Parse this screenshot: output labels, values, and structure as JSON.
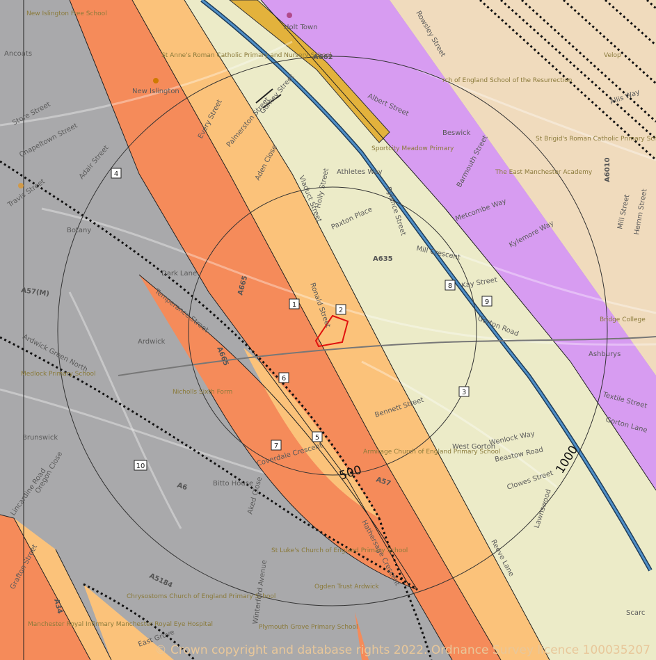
{
  "copyright": "© Crown copyright and database rights 2022. Ordnance Survey licence 100035207",
  "distance_labels": [
    "500",
    "1000"
  ],
  "markers": [
    "1",
    "2",
    "3",
    "4",
    "5",
    "6",
    "7",
    "8",
    "9",
    "10"
  ],
  "places": {
    "new_islington_free_school": "New Islington Free School",
    "holt_town": "Holt Town",
    "ancoats": "Ancoats",
    "st_annes": "St Anne's Roman Catholic Primary and Nursery School",
    "new_islington": "New Islington",
    "church_school": "rch of England School of the Resurrection",
    "beswick": "Beswick",
    "velop": "Velop",
    "st_brigids": "St Brigid's Roman Catholic Primary School",
    "east_manchester_academy": "The East Manchester Academy",
    "medlock_primary": "Medlock Primary School",
    "nicholls_sixth_form": "Nicholls Sixth Form",
    "brunswick": "Brunswick",
    "ardwick": "Ardwick",
    "west_gorton": "West Gorton",
    "armitage": "Armitage Church of England Primary School",
    "ashburys": "Ashburys",
    "bridge_college": "Bridge College",
    "st_lukes": "St Luke's Church of England Primary School",
    "ogden_trust": "Ogden Trust Ardwick",
    "chrysostoms": "Chrysostoms Church of England Primary School",
    "plymouth_grove": "Plymouth Grove Primary School",
    "mri": "Manchester Royal Infirmary Manchester Royal Eye Hospital",
    "sports_city": "Sportcity Meadow Primary"
  },
  "streets": {
    "store_street": "Store Street",
    "chapeltown_street": "Chapeltown Street",
    "adair_street": "Adair Street",
    "travis_street": "Travis Street",
    "every_street": "Every Street",
    "palmerston_street": "Palmerston Street",
    "gurney_street": "Gurney Street",
    "a662": "A662",
    "albert_street": "Albert Street",
    "rowsley_street": "Rowsley Street",
    "allis_way": "Allis Way",
    "aden_close": "Aden Close",
    "viaduct_street": "Viaduct Street",
    "athletes_way": "Athletes Way",
    "holly_street": "Holly Street",
    "rylance_street": "Rylance Street",
    "barmouth_street": "Barmouth Street",
    "metcombe_way": "Metcombe Way",
    "kylemore_way": "Kylemore Way",
    "mill_street": "Mill Street",
    "hemm_street": "Hemm Street",
    "a6010": "A6010",
    "paxton_place": "Paxton Place",
    "mill_crescent": "Mill Crescent",
    "a635": "A635",
    "dark_lane": "Dark Lane",
    "a57m": "A57(M)",
    "a665": "A665",
    "ronald_street": "Ronald Street",
    "kay_street": "Kay Street",
    "gorton_road": "Gorton Road",
    "temperance_street": "Temperance Street",
    "ardwick_green_north": "Ardwick Green North",
    "a665b": "A665",
    "bennett_street": "Bennett Street",
    "wenlock_way": "Wenlock Way",
    "beastow_road": "Beastow Road",
    "textile_street": "Textile Street",
    "gorton_lane": "Gorton Lane",
    "clowes_street": "Clowes Street",
    "lawnswood": "Lawnswood",
    "coverdale_crescent": "Coverdale Crescent",
    "a57": "A57",
    "oregon_close": "Oregon Close",
    "lincardine_road": "Lincardine Road",
    "a6": "A6",
    "bitto_house": "Bitto House",
    "aked_close": "Aked Close",
    "hathersage_crescent": "Hathersage Crescent",
    "grafton_street": "Grafton Street",
    "a34": "A34",
    "a5184": "A5184",
    "winterford_avenue": "Winterford Avenue",
    "east_grove": "East Grove",
    "reeve_lane": "Reeve Lane",
    "scarc": "Scarc",
    "botany": "Botany"
  },
  "colors": {
    "grey_band": "#a9a9ab",
    "orange_band": "#f58b5a",
    "light_orange_band": "#fbc27a",
    "cream_band": "#ecebc8",
    "purple_band": "#d79cf1",
    "beige_band": "#f0dbbd",
    "canal": "#4f8fc7",
    "site_outline": "#e0120e",
    "yellow_strip": "#e3b23c"
  }
}
